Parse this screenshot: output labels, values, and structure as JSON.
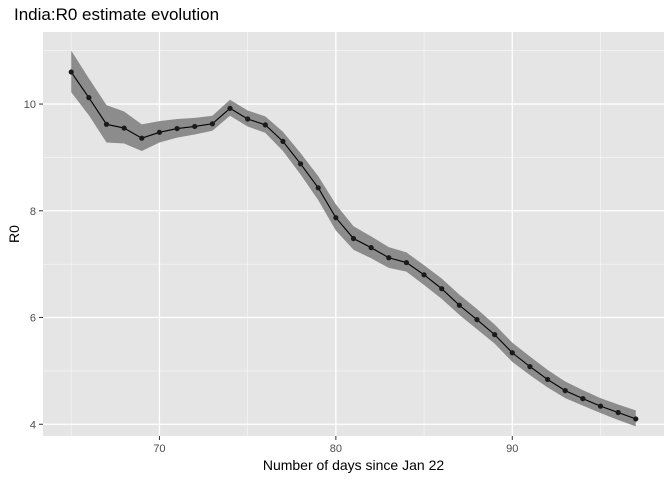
{
  "chart_data": {
    "type": "line",
    "title": "India:R0 estimate evolution",
    "xlabel": "Number of days since Jan 22",
    "ylabel": "R0",
    "xlim": [
      63.4,
      98.6
    ],
    "ylim": [
      3.78,
      11.35
    ],
    "x_ticks": [
      70,
      80,
      90
    ],
    "y_ticks": [
      4,
      6,
      8,
      10
    ],
    "grid": true,
    "legend": "none",
    "colors": {
      "panel": "#e5e5e5",
      "grid_major": "#ffffff",
      "ribbon": "#8c8c8c",
      "line": "#000000",
      "point": "#1a1a1a"
    },
    "series": [
      {
        "x": [
          65,
          66,
          67,
          68,
          69,
          70,
          71,
          72,
          73,
          74,
          75,
          76,
          77,
          78,
          79,
          80,
          81,
          82,
          83,
          84,
          85,
          86,
          87,
          88,
          89,
          90,
          91,
          92,
          93,
          94,
          95,
          96,
          97
        ],
        "y": [
          10.6,
          10.12,
          9.62,
          9.55,
          9.36,
          9.47,
          9.54,
          9.58,
          9.63,
          9.92,
          9.72,
          9.61,
          9.3,
          8.88,
          8.43,
          7.87,
          7.48,
          7.31,
          7.12,
          7.03,
          6.8,
          6.54,
          6.23,
          5.96,
          5.68,
          5.34,
          5.08,
          4.84,
          4.63,
          4.48,
          4.34,
          4.22,
          4.1
        ],
        "lower": [
          10.22,
          9.79,
          9.28,
          9.26,
          9.12,
          9.28,
          9.37,
          9.43,
          9.5,
          9.78,
          9.58,
          9.46,
          9.12,
          8.68,
          8.2,
          7.63,
          7.27,
          7.11,
          6.93,
          6.86,
          6.61,
          6.35,
          6.05,
          5.78,
          5.51,
          5.17,
          4.92,
          4.69,
          4.49,
          4.35,
          4.21,
          4.08,
          3.96
        ],
        "upper": [
          11.0,
          10.48,
          9.98,
          9.86,
          9.62,
          9.68,
          9.72,
          9.74,
          9.78,
          10.08,
          9.88,
          9.77,
          9.48,
          9.08,
          8.65,
          8.12,
          7.71,
          7.52,
          7.32,
          7.22,
          6.98,
          6.73,
          6.43,
          6.16,
          5.87,
          5.53,
          5.27,
          5.02,
          4.8,
          4.64,
          4.49,
          4.37,
          4.26
        ]
      }
    ]
  }
}
